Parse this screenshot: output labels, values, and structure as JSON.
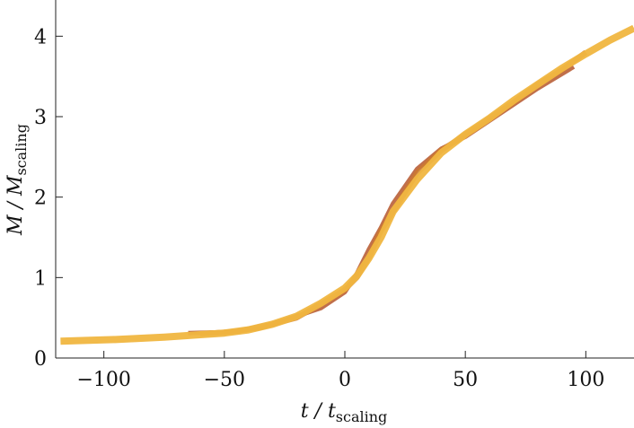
{
  "chart_data": {
    "type": "line",
    "xlabel": {
      "main": "t / t",
      "sub": "scaling"
    },
    "ylabel": {
      "main": "M / M",
      "sub": "scaling"
    },
    "xlim": [
      -120,
      120
    ],
    "ylim": [
      0,
      4.45
    ],
    "xticks": [
      {
        "value": -100,
        "label": "−100"
      },
      {
        "value": -50,
        "label": "−50"
      },
      {
        "value": 0,
        "label": "0"
      },
      {
        "value": 50,
        "label": "50"
      },
      {
        "value": 100,
        "label": "100"
      }
    ],
    "yticks": [
      {
        "value": 0,
        "label": "0"
      },
      {
        "value": 1,
        "label": "1"
      },
      {
        "value": 2,
        "label": "2"
      },
      {
        "value": 3,
        "label": "3"
      },
      {
        "value": 4,
        "label": "4"
      }
    ],
    "grid": false,
    "series": [
      {
        "color": "#b5562b",
        "width": 5,
        "x": [
          -65,
          -50,
          -35,
          -20,
          -10,
          0,
          5,
          10,
          15,
          20,
          30,
          40,
          50,
          65,
          80,
          95
        ],
        "y": [
          0.31,
          0.32,
          0.37,
          0.52,
          0.62,
          0.82,
          1.05,
          1.35,
          1.62,
          1.92,
          2.35,
          2.6,
          2.75,
          3.05,
          3.35,
          3.62
        ]
      },
      {
        "color": "#cc7a2e",
        "width": 6,
        "x": [
          -60,
          -45,
          -30,
          -20,
          -10,
          0,
          5,
          10,
          15,
          20,
          30,
          40,
          50,
          60,
          70,
          80,
          90,
          100
        ],
        "y": [
          0.3,
          0.33,
          0.42,
          0.5,
          0.67,
          0.85,
          1.0,
          1.25,
          1.58,
          1.82,
          2.3,
          2.58,
          2.78,
          2.98,
          3.18,
          3.4,
          3.58,
          3.8
        ]
      },
      {
        "color": "#f0b640",
        "width": 8,
        "x": [
          -118,
          -95,
          -75,
          -60,
          -50,
          -40,
          -30,
          -20,
          -10,
          0,
          5,
          10,
          15,
          20,
          30,
          40,
          50,
          60,
          70,
          80,
          90,
          100,
          110,
          120
        ],
        "y": [
          0.21,
          0.23,
          0.26,
          0.29,
          0.31,
          0.35,
          0.42,
          0.52,
          0.68,
          0.87,
          1.02,
          1.24,
          1.5,
          1.82,
          2.22,
          2.55,
          2.78,
          2.98,
          3.2,
          3.4,
          3.6,
          3.78,
          3.95,
          4.1
        ]
      }
    ]
  }
}
